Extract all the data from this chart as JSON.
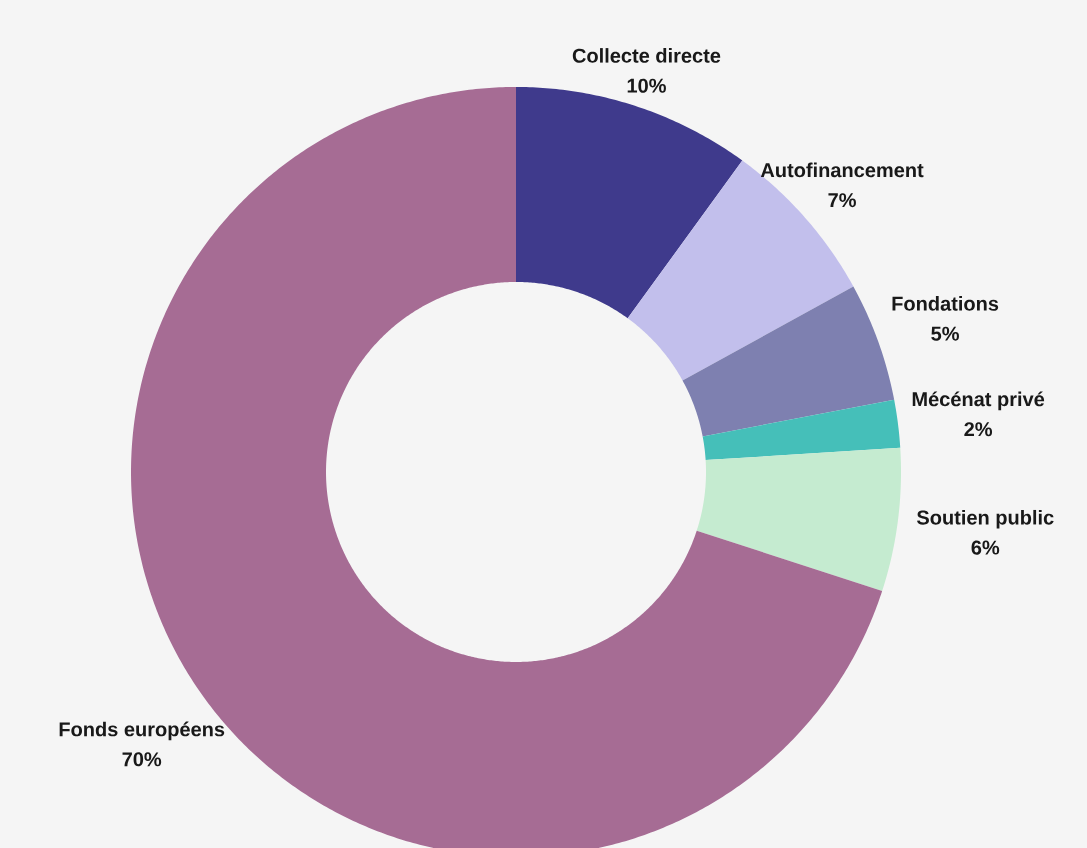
{
  "chart_data": {
    "type": "donut",
    "categories": [
      "Collecte directe",
      "Autofinancement",
      "Fondations",
      "Mécénat privé",
      "Soutien public",
      "Fonds européens"
    ],
    "values": [
      10,
      7,
      5,
      2,
      6,
      70
    ],
    "value_labels": [
      "10%",
      "7%",
      "5%",
      "2%",
      "6%",
      "70%"
    ],
    "colors": [
      "#3f3a8c",
      "#c2bfec",
      "#7e80b0",
      "#45bfb9",
      "#c5ebd0",
      "#a66c94"
    ]
  }
}
